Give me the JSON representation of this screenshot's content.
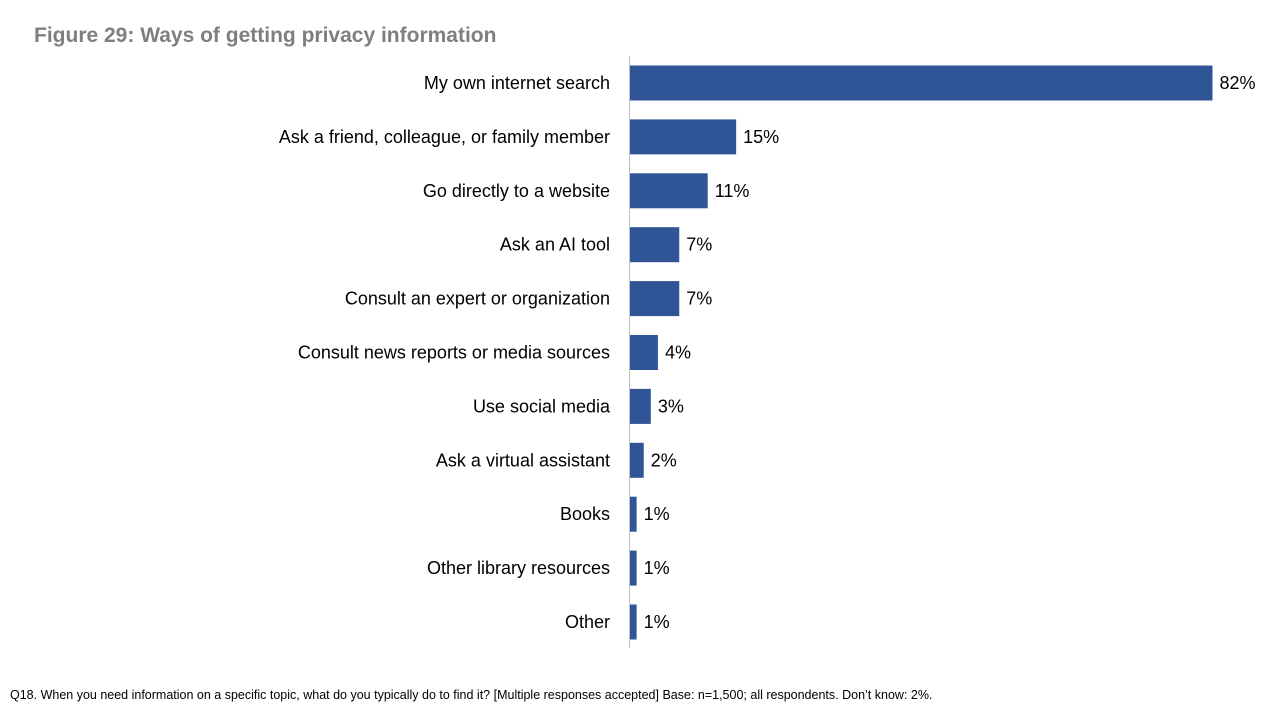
{
  "title": "Figure 29: Ways of getting privacy information",
  "footnote": "Q18. When you need information on a specific topic, what do you typically do to find it? [Multiple responses accepted] Base: n=1,500; all respondents. Don’t know: 2%.",
  "colors": {
    "bar": "#2f5597",
    "axis": "#bfbfbf",
    "title": "#7f7f7f"
  },
  "chart_data": {
    "type": "bar",
    "orientation": "horizontal",
    "title": "Figure 29: Ways of getting privacy information",
    "categories": [
      "My own internet search",
      "Ask a friend, colleague, or family member",
      "Go directly to a website",
      "Ask an AI tool",
      "Consult an expert or organization",
      "Consult news reports or media sources",
      "Use social media",
      "Ask a virtual assistant",
      "Books",
      "Other library resources",
      "Other"
    ],
    "values": [
      82,
      15,
      11,
      7,
      7,
      4,
      3,
      2,
      1,
      1,
      1
    ],
    "value_labels": [
      "82%",
      "15%",
      "11%",
      "7%",
      "7%",
      "4%",
      "3%",
      "2%",
      "1%",
      "1%",
      "1%"
    ],
    "unit": "%",
    "xlim": [
      0,
      82
    ],
    "grid": false,
    "legend": "none"
  }
}
